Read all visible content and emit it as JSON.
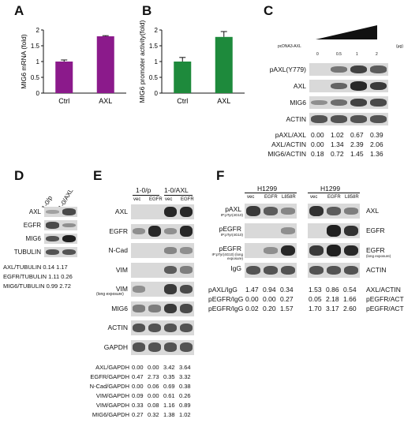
{
  "panels": {
    "A": "A",
    "B": "B",
    "C": "C",
    "D": "D",
    "E": "E",
    "F": "F"
  },
  "chart_data": [
    {
      "type": "bar",
      "panel": "A",
      "categories": [
        "Ctrl",
        "AXL"
      ],
      "values": [
        1.0,
        1.8
      ],
      "errors": [
        0.05,
        0.02
      ],
      "ylabel": "MIG6 mRNA (fold)",
      "ylim": [
        0,
        2
      ],
      "yticks": [
        "0",
        "0.5",
        "1",
        "1.5",
        "2"
      ],
      "color": "#8b1a8b"
    },
    {
      "type": "bar",
      "panel": "B",
      "categories": [
        "Ctrl",
        "AXL"
      ],
      "values": [
        1.0,
        1.78
      ],
      "errors": [
        0.13,
        0.17
      ],
      "ylabel": "MIG6 promoter activity(fold)",
      "ylim": [
        0,
        2
      ],
      "yticks": [
        "0",
        "0.5",
        "1",
        "1.5",
        "2"
      ],
      "color": "#1e8a3c"
    }
  ],
  "panel_c": {
    "construct": "pcDNA3-AXL",
    "doses": [
      "0",
      "0.5",
      "1",
      "2"
    ],
    "unit": "(μg)",
    "blots": [
      "pAXL(Y779)",
      "AXL",
      "MIG6",
      "ACTIN"
    ],
    "quant": [
      {
        "label": "pAXL/AXL",
        "values": [
          "0.00",
          "1.02",
          "0.67",
          "0.39"
        ]
      },
      {
        "label": "AXL/ACTIN",
        "values": [
          "0.00",
          "1.34",
          "2.39",
          "2.06"
        ]
      },
      {
        "label": "MIG6/ACTIN",
        "values": [
          "0.18",
          "0.72",
          "1.45",
          "1.36"
        ]
      }
    ]
  },
  "panel_d": {
    "lanes": [
      "1-0/p",
      "1-0/AXL"
    ],
    "blots": [
      "AXL",
      "EGFR",
      "MIG6",
      "TUBULIN"
    ],
    "quant": [
      {
        "label": "AXL/TUBULIN",
        "values": [
          "0.14",
          "1.17"
        ]
      },
      {
        "label": "EGFR/TUBULIN",
        "values": [
          "1.11",
          "0.26"
        ]
      },
      {
        "label": "MIG6/TUBULIN",
        "values": [
          "0.99",
          "2.72"
        ]
      }
    ]
  },
  "panel_e": {
    "groups": [
      "1-0/p",
      "1-0/AXL"
    ],
    "lanes": [
      "vec",
      "EGFR",
      "vec",
      "EGFR"
    ],
    "blots": [
      "AXL",
      "EGFR",
      "N-Cad",
      "VIM",
      "VIM",
      "MIG6",
      "ACTIN",
      "GAPDH"
    ],
    "vim_long": "(long exposure)",
    "quant": [
      {
        "label": "AXL/GAPDH",
        "values": [
          "0.00",
          "0.00",
          "3.42",
          "3.64"
        ]
      },
      {
        "label": "EGFR/GAPDH",
        "values": [
          "0.47",
          "2.73",
          "0.35",
          "3.32"
        ]
      },
      {
        "label": "N-Cad/GAPDH",
        "values": [
          "0.00",
          "0.06",
          "0.69",
          "0.38"
        ]
      },
      {
        "label": "VIM/GAPDH",
        "values": [
          "0.09",
          "0.00",
          "0.61",
          "0.26"
        ]
      },
      {
        "label": "VIM/GAPDH",
        "values": [
          "0.33",
          "0.08",
          "1.16",
          "0.89"
        ]
      },
      {
        "label": "MIG6/GAPDH",
        "values": [
          "0.27",
          "0.32",
          "1.38",
          "1.02"
        ]
      }
    ]
  },
  "panel_f": {
    "cell": "H1299",
    "lanes": [
      "vec",
      "EGFR",
      "L858R"
    ],
    "left_blots": [
      {
        "label": "pAXL",
        "sub": "IP:pTyr(4G10)"
      },
      {
        "label": "pEGFR",
        "sub": "IP:pTyr(4G10)"
      },
      {
        "label": "pEGFR",
        "sub": "IP:pTyr(4G10) (long exposure)"
      },
      {
        "label": "IgG",
        "sub": ""
      }
    ],
    "right_blots": [
      {
        "label": "AXL",
        "sub": ""
      },
      {
        "label": "EGFR",
        "sub": ""
      },
      {
        "label": "EGFR",
        "sub": "(long exposure)"
      },
      {
        "label": "ACTIN",
        "sub": ""
      }
    ],
    "left_quant": [
      {
        "label": "pAXL/IgG",
        "values": [
          "1.47",
          "0.94",
          "0.34"
        ]
      },
      {
        "label": "pEGFR/IgG",
        "values": [
          "0.00",
          "0.00",
          "0.27"
        ]
      },
      {
        "label": "pEGFR/IgG",
        "values": [
          "0.02",
          "0.20",
          "1.57"
        ]
      }
    ],
    "right_quant": [
      {
        "label": "AXL/ACTIN",
        "values": [
          "1.53",
          "0.86",
          "0.54"
        ]
      },
      {
        "label": "pEGFR/ACTIN",
        "values": [
          "0.05",
          "2.18",
          "1.66"
        ]
      },
      {
        "label": "pEGFR/ACTIN",
        "values": [
          "1.70",
          "3.17",
          "2.60"
        ]
      }
    ]
  }
}
